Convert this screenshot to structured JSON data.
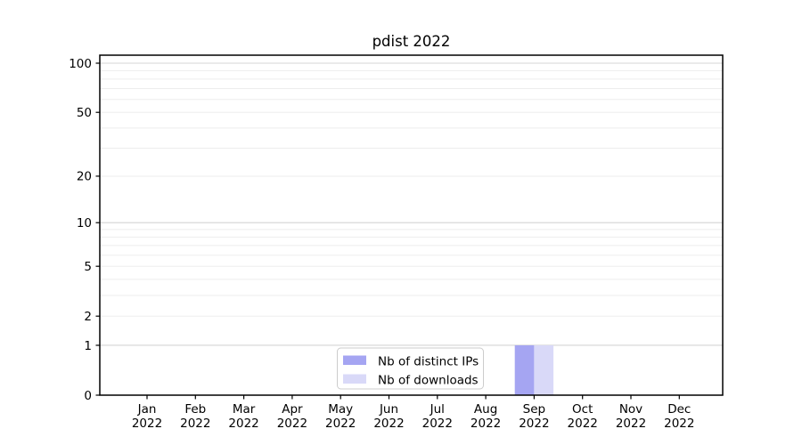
{
  "chart_data": {
    "type": "bar",
    "title": "pdist 2022",
    "categories": [
      "Jan 2022",
      "Feb 2022",
      "Mar 2022",
      "Apr 2022",
      "May 2022",
      "Jun 2022",
      "Jul 2022",
      "Aug 2022",
      "Sep 2022",
      "Oct 2022",
      "Nov 2022",
      "Dec 2022"
    ],
    "series": [
      {
        "name": "Nb of distinct IPs",
        "color": "#a5a5f2",
        "values": [
          0,
          0,
          0,
          0,
          0,
          0,
          0,
          0,
          1,
          0,
          0,
          0
        ]
      },
      {
        "name": "Nb of downloads",
        "color": "#d9d9f8",
        "values": [
          0,
          0,
          0,
          0,
          0,
          0,
          0,
          0,
          1,
          0,
          0,
          0
        ]
      }
    ],
    "xlabel": "",
    "ylabel": "",
    "yscale": "log1p",
    "yticks": [
      0,
      1,
      2,
      5,
      10,
      20,
      50,
      100
    ],
    "ylim": [
      0,
      112
    ],
    "grid": "on",
    "gridlines": {
      "major": [
        1,
        10,
        100
      ],
      "minor": [
        2,
        3,
        4,
        5,
        6,
        7,
        8,
        9,
        20,
        30,
        40,
        50,
        60,
        70,
        80,
        90
      ]
    },
    "legend_position": "lower center",
    "colors": {
      "grid_major": "#d4d4d4",
      "grid_minor": "#ededed",
      "spine": "#000000",
      "legend_border": "#cccccc",
      "legend_background": "#ffffff"
    }
  }
}
